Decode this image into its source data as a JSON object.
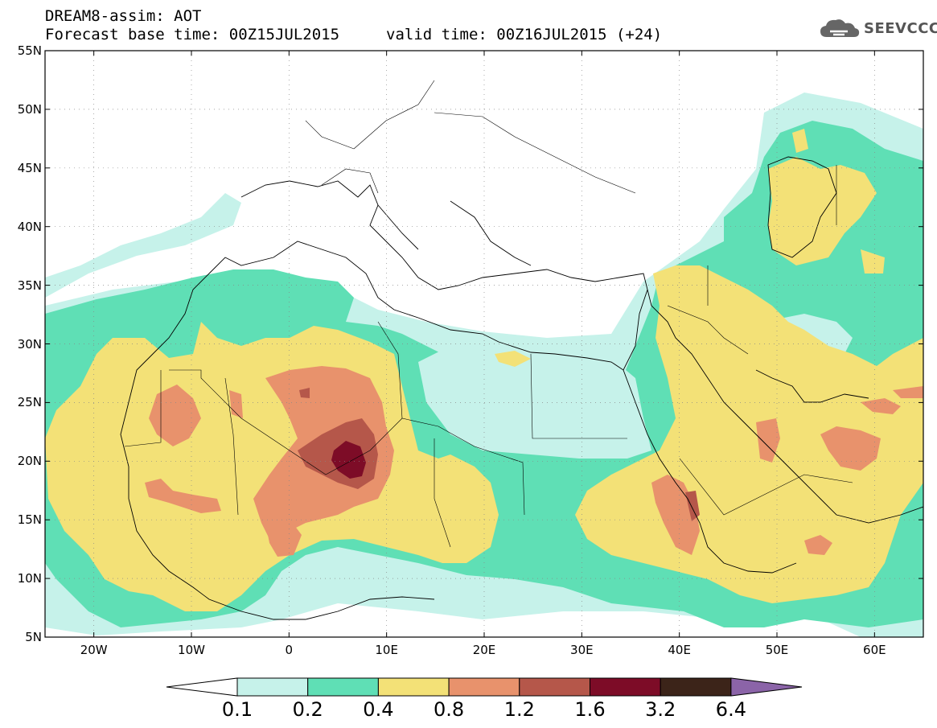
{
  "header": {
    "title": "DREAM8-assim: AOT",
    "base_time": "Forecast base time: 00Z15JUL2015",
    "valid_time": "valid time: 00Z16JUL2015 (+24)"
  },
  "logo": {
    "text": "SEEVCCC",
    "icon": "cloud-icon"
  },
  "map": {
    "lat_labels": [
      "55N",
      "50N",
      "45N",
      "40N",
      "35N",
      "30N",
      "25N",
      "20N",
      "15N",
      "10N",
      "5N"
    ],
    "lon_labels": [
      "20W",
      "10W",
      "0",
      "10E",
      "20E",
      "30E",
      "40E",
      "50E",
      "60E"
    ],
    "extent": {
      "lon_min": -25,
      "lon_max": 65,
      "lat_min": 5,
      "lat_max": 55
    },
    "grid": "dotted"
  },
  "colorbar": {
    "colors": [
      "#ffffff",
      "#c6f2ea",
      "#5fdfb5",
      "#f3e177",
      "#e8926c",
      "#b5574a",
      "#7d0c27",
      "#3c2419",
      "#8b64a8"
    ],
    "labels": [
      "0.1",
      "0.2",
      "0.4",
      "0.8",
      "1.2",
      "1.6",
      "3.2",
      "6.4"
    ]
  }
}
